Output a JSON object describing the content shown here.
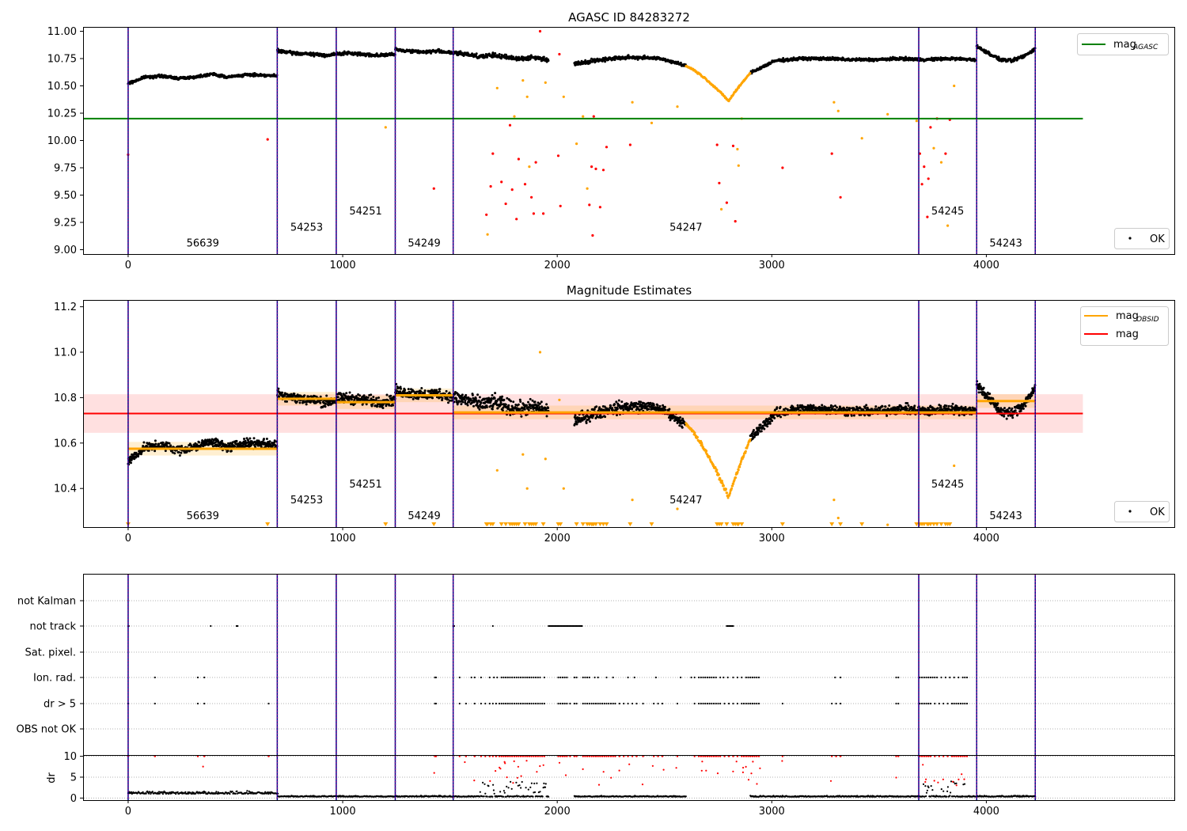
{
  "chart_data": [
    {
      "type": "scatter",
      "title": "AGASC ID 84283272",
      "xlabel": "",
      "ylabel": "",
      "xlim": [
        -210,
        4880
      ],
      "ylim": [
        8.96,
        11.04
      ],
      "xticks": [
        0,
        1000,
        2000,
        3000,
        4000
      ],
      "yticks": [
        9.0,
        9.25,
        9.5,
        9.75,
        10.0,
        10.25,
        10.5,
        10.75,
        11.0
      ],
      "ytick_labels": [
        "9.00",
        "9.25",
        "9.50",
        "9.75",
        "10.00",
        "10.25",
        "10.50",
        "10.75",
        "11.00"
      ],
      "obs_boundaries": [
        0,
        695,
        970,
        1245,
        1515,
        3685,
        3955,
        4228
      ],
      "obs_labels": [
        {
          "text": "56639",
          "x": 348,
          "y": 9.065
        },
        {
          "text": "54253",
          "x": 832,
          "y": 9.21
        },
        {
          "text": "54251",
          "x": 1107,
          "y": 9.36
        },
        {
          "text": "54249",
          "x": 1380,
          "y": 9.065
        },
        {
          "text": "54247",
          "x": 2600,
          "y": 9.21
        },
        {
          "text": "54245",
          "x": 3820,
          "y": 9.36
        },
        {
          "text": "54243",
          "x": 4091,
          "y": 9.065
        }
      ],
      "reference_lines": [
        {
          "name": "mag_AGASC",
          "y": 10.2,
          "x": [
            -210,
            4450
          ],
          "color": "#008000"
        }
      ],
      "legends": [
        {
          "position": "top-right",
          "entries": [
            {
              "label": "mag",
              "sub": "AGASC",
              "color": "#008000",
              "marker": "line"
            }
          ]
        },
        {
          "position": "bottom-right",
          "entries": [
            {
              "label": "OK",
              "color": "#000000",
              "marker": "dot"
            }
          ]
        }
      ],
      "segments": [
        {
          "x0": 0,
          "x1": 695,
          "base": [
            10.52,
            10.58,
            10.59,
            10.57,
            10.58,
            10.61,
            10.58,
            10.6,
            10.6,
            10.59
          ],
          "spread": 0.018
        },
        {
          "x0": 695,
          "x1": 1245,
          "base": [
            10.82,
            10.8,
            10.79,
            10.78,
            10.8,
            10.79,
            10.78,
            10.79
          ],
          "spread": 0.022
        },
        {
          "x0": 1245,
          "x1": 1515,
          "base": [
            10.83,
            10.82,
            10.81,
            10.82,
            10.8
          ],
          "spread": 0.022
        },
        {
          "x0": 1515,
          "x1": 1960,
          "base": [
            10.8,
            10.79,
            10.77,
            10.78,
            10.76,
            10.75,
            10.76,
            10.74
          ],
          "spread": 0.03
        },
        {
          "x0": 2080,
          "x1": 2420,
          "base": [
            10.7,
            10.73,
            10.75,
            10.76,
            10.76
          ],
          "spread": 0.025
        },
        {
          "x0": 2420,
          "x1": 2600,
          "base": [
            10.76,
            10.75,
            10.72,
            10.68
          ],
          "spread": 0.02
        },
        {
          "x0": 2900,
          "x1": 3950,
          "base": [
            10.62,
            10.73,
            10.75,
            10.75,
            10.74,
            10.74,
            10.75,
            10.74,
            10.75,
            10.74
          ],
          "spread": 0.02
        },
        {
          "x0": 3955,
          "x1": 4228,
          "base": [
            10.86,
            10.8,
            10.74,
            10.73,
            10.77,
            10.84
          ],
          "spread": 0.022
        }
      ],
      "dip": {
        "x_start": 2600,
        "x_min": 2800,
        "x_end": 2900,
        "y_top": 10.68,
        "y_min": 10.36,
        "color": "#ffa500"
      },
      "outliers": [
        {
          "x": 0,
          "y": 9.87,
          "color": "#ff0000"
        },
        {
          "x": 650,
          "y": 10.01,
          "color": "#ff0000"
        },
        {
          "x": 1200,
          "y": 10.12,
          "color": "#ffa500"
        },
        {
          "x": 1425,
          "y": 9.56,
          "color": "#ff0000"
        },
        {
          "x": 1670,
          "y": 9.32,
          "color": "#ff0000"
        },
        {
          "x": 1675,
          "y": 9.14,
          "color": "#ffa500"
        },
        {
          "x": 1690,
          "y": 9.58,
          "color": "#ff0000"
        },
        {
          "x": 1700,
          "y": 9.88,
          "color": "#ff0000"
        },
        {
          "x": 1720,
          "y": 10.48,
          "color": "#ffa500"
        },
        {
          "x": 1740,
          "y": 9.62,
          "color": "#ff0000"
        },
        {
          "x": 1760,
          "y": 9.42,
          "color": "#ff0000"
        },
        {
          "x": 1780,
          "y": 10.14,
          "color": "#ff0000"
        },
        {
          "x": 1790,
          "y": 9.55,
          "color": "#ff0000"
        },
        {
          "x": 1800,
          "y": 10.22,
          "color": "#ffa500"
        },
        {
          "x": 1810,
          "y": 9.28,
          "color": "#ff0000"
        },
        {
          "x": 1820,
          "y": 9.83,
          "color": "#ff0000"
        },
        {
          "x": 1840,
          "y": 10.55,
          "color": "#ffa500"
        },
        {
          "x": 1850,
          "y": 9.6,
          "color": "#ff0000"
        },
        {
          "x": 1860,
          "y": 10.4,
          "color": "#ffa500"
        },
        {
          "x": 1870,
          "y": 9.76,
          "color": "#ffa500"
        },
        {
          "x": 1880,
          "y": 9.48,
          "color": "#ff0000"
        },
        {
          "x": 1890,
          "y": 9.33,
          "color": "#ff0000"
        },
        {
          "x": 1900,
          "y": 9.8,
          "color": "#ff0000"
        },
        {
          "x": 1920,
          "y": 11.0,
          "color": "#ff0000"
        },
        {
          "x": 1935,
          "y": 9.33,
          "color": "#ff0000"
        },
        {
          "x": 1945,
          "y": 10.53,
          "color": "#ffa500"
        },
        {
          "x": 2005,
          "y": 9.86,
          "color": "#ff0000"
        },
        {
          "x": 2010,
          "y": 10.79,
          "color": "#ff0000"
        },
        {
          "x": 2015,
          "y": 9.4,
          "color": "#ff0000"
        },
        {
          "x": 2030,
          "y": 10.4,
          "color": "#ffa500"
        },
        {
          "x": 2090,
          "y": 9.97,
          "color": "#ffa500"
        },
        {
          "x": 2120,
          "y": 10.22,
          "color": "#ffa500"
        },
        {
          "x": 2140,
          "y": 9.56,
          "color": "#ffa500"
        },
        {
          "x": 2150,
          "y": 9.41,
          "color": "#ff0000"
        },
        {
          "x": 2160,
          "y": 9.76,
          "color": "#ff0000"
        },
        {
          "x": 2165,
          "y": 9.13,
          "color": "#ff0000"
        },
        {
          "x": 2170,
          "y": 10.22,
          "color": "#ff0000"
        },
        {
          "x": 2180,
          "y": 9.74,
          "color": "#ff0000"
        },
        {
          "x": 2200,
          "y": 9.39,
          "color": "#ff0000"
        },
        {
          "x": 2215,
          "y": 9.73,
          "color": "#ff0000"
        },
        {
          "x": 2230,
          "y": 9.94,
          "color": "#ff0000"
        },
        {
          "x": 2340,
          "y": 9.96,
          "color": "#ff0000"
        },
        {
          "x": 2350,
          "y": 10.35,
          "color": "#ffa500"
        },
        {
          "x": 2440,
          "y": 10.16,
          "color": "#ffa500"
        },
        {
          "x": 2560,
          "y": 10.31,
          "color": "#ffa500"
        },
        {
          "x": 2745,
          "y": 9.96,
          "color": "#ff0000"
        },
        {
          "x": 2755,
          "y": 9.61,
          "color": "#ff0000"
        },
        {
          "x": 2765,
          "y": 9.37,
          "color": "#ffa500"
        },
        {
          "x": 2790,
          "y": 9.43,
          "color": "#ff0000"
        },
        {
          "x": 2820,
          "y": 9.95,
          "color": "#ff0000"
        },
        {
          "x": 2830,
          "y": 9.26,
          "color": "#ff0000"
        },
        {
          "x": 2840,
          "y": 9.92,
          "color": "#ffa500"
        },
        {
          "x": 2845,
          "y": 9.77,
          "color": "#ffa500"
        },
        {
          "x": 2860,
          "y": 10.2,
          "color": "#ffa500"
        },
        {
          "x": 3050,
          "y": 9.75,
          "color": "#ff0000"
        },
        {
          "x": 3280,
          "y": 9.88,
          "color": "#ff0000"
        },
        {
          "x": 3290,
          "y": 10.35,
          "color": "#ffa500"
        },
        {
          "x": 3310,
          "y": 10.27,
          "color": "#ffa500"
        },
        {
          "x": 3320,
          "y": 9.48,
          "color": "#ff0000"
        },
        {
          "x": 3420,
          "y": 10.02,
          "color": "#ffa500"
        },
        {
          "x": 3540,
          "y": 10.24,
          "color": "#ffa500"
        },
        {
          "x": 3675,
          "y": 10.18,
          "color": "#ffa500"
        },
        {
          "x": 3690,
          "y": 9.88,
          "color": "#ff0000"
        },
        {
          "x": 3700,
          "y": 9.6,
          "color": "#ff0000"
        },
        {
          "x": 3710,
          "y": 9.76,
          "color": "#ff0000"
        },
        {
          "x": 3725,
          "y": 9.3,
          "color": "#ff0000"
        },
        {
          "x": 3730,
          "y": 9.65,
          "color": "#ff0000"
        },
        {
          "x": 3740,
          "y": 10.12,
          "color": "#ff0000"
        },
        {
          "x": 3755,
          "y": 9.93,
          "color": "#ffa500"
        },
        {
          "x": 3770,
          "y": 10.2,
          "color": "#ff0000"
        },
        {
          "x": 3790,
          "y": 9.8,
          "color": "#ffa500"
        },
        {
          "x": 3810,
          "y": 9.88,
          "color": "#ff0000"
        },
        {
          "x": 3820,
          "y": 9.22,
          "color": "#ffa500"
        },
        {
          "x": 3830,
          "y": 10.19,
          "color": "#ff0000"
        },
        {
          "x": 3850,
          "y": 10.5,
          "color": "#ffa500"
        }
      ]
    },
    {
      "type": "scatter",
      "title": "Magnitude Estimates",
      "xlabel": "",
      "ylabel": "",
      "xlim": [
        -210,
        4880
      ],
      "ylim": [
        10.23,
        11.23
      ],
      "xticks": [
        0,
        1000,
        2000,
        3000,
        4000
      ],
      "yticks": [
        10.4,
        10.6,
        10.8,
        11.0,
        11.2
      ],
      "ytick_labels": [
        "10.4",
        "10.6",
        "10.8",
        "11.0",
        "11.2"
      ],
      "mag": {
        "y": 10.73,
        "band": [
          10.645,
          10.815
        ],
        "x": [
          -210,
          4450
        ],
        "color": "#ff0000"
      },
      "mag_obsid": [
        {
          "x0": 0,
          "x1": 695,
          "y": 10.575
        },
        {
          "x0": 695,
          "x1": 970,
          "y": 10.795
        },
        {
          "x0": 970,
          "x1": 1245,
          "y": 10.78
        },
        {
          "x0": 1245,
          "x1": 1515,
          "y": 10.81
        },
        {
          "x0": 1515,
          "x1": 3685,
          "y": 10.735
        },
        {
          "x0": 3685,
          "x1": 3955,
          "y": 10.735
        },
        {
          "x0": 3955,
          "x1": 4228,
          "y": 10.785
        }
      ],
      "legends": [
        {
          "position": "top-right",
          "entries": [
            {
              "label": "mag",
              "sub": "OBSID",
              "color": "#ffa500",
              "marker": "line"
            },
            {
              "label": "mag",
              "sub": "",
              "color": "#ff0000",
              "marker": "line"
            }
          ]
        },
        {
          "position": "bottom-right",
          "entries": [
            {
              "label": "OK",
              "color": "#000000",
              "marker": "dot"
            }
          ]
        }
      ]
    },
    {
      "type": "scatter",
      "title": "",
      "xlabel": "",
      "ylabel": "",
      "flag_rows": [
        "not Kalman",
        "not track",
        "Sat. pixel.",
        "Ion. rad.",
        "dr > 5",
        "OBS not OK"
      ],
      "flag_points": {
        "not Kalman": [
          3955
        ],
        "not track": [
          0,
          3,
          385,
          505,
          510,
          1515,
          1520,
          1700,
          1960,
          1965,
          1970,
          1975,
          1980,
          1985,
          1990,
          1995,
          2000,
          2005,
          2010,
          2015,
          2020,
          2025,
          2030,
          2035,
          2040,
          2045,
          2050,
          2055,
          2060,
          2065,
          2070,
          2075,
          2080,
          2085,
          2090,
          2095,
          2100,
          2105,
          2110,
          2115,
          2790,
          2795,
          2800,
          2805,
          2810,
          2815,
          2820
        ],
        "Sat. pixel.": [],
        "Ion. rad.": [
          125,
          325,
          355,
          1430,
          1435,
          1545,
          1600,
          1615,
          1645,
          1685,
          1705,
          1720,
          1740,
          1750,
          1760,
          1770,
          1780,
          1790,
          1800,
          1810,
          1820,
          1830,
          1840,
          1850,
          1860,
          1870,
          1880,
          1890,
          1900,
          1910,
          1920,
          1940,
          2005,
          2015,
          2025,
          2035,
          2045,
          2080,
          2090,
          2120,
          2130,
          2140,
          2150,
          2175,
          2190,
          2230,
          2260,
          2330,
          2360,
          2460,
          2575,
          2625,
          2640,
          2660,
          2670,
          2680,
          2690,
          2700,
          2710,
          2720,
          2730,
          2740,
          2760,
          2775,
          2795,
          2820,
          2840,
          2860,
          2880,
          2890,
          2900,
          2910,
          2920,
          2930,
          2940,
          3295,
          3320,
          3580,
          3590,
          3690,
          3700,
          3710,
          3720,
          3730,
          3740,
          3750,
          3760,
          3770,
          3790,
          3810,
          3830,
          3850,
          3870,
          3890,
          3900,
          3910
        ],
        "dr > 5": [
          0,
          125,
          325,
          355,
          655,
          1430,
          1435,
          1545,
          1575,
          1615,
          1645,
          1665,
          1685,
          1700,
          1715,
          1730,
          1740,
          1750,
          1760,
          1770,
          1780,
          1790,
          1800,
          1810,
          1820,
          1830,
          1840,
          1850,
          1860,
          1870,
          1880,
          1890,
          1900,
          1910,
          1920,
          1930,
          1940,
          2005,
          2015,
          2025,
          2035,
          2045,
          2060,
          2080,
          2090,
          2120,
          2130,
          2140,
          2150,
          2160,
          2170,
          2180,
          2190,
          2200,
          2210,
          2220,
          2230,
          2240,
          2250,
          2260,
          2270,
          2290,
          2310,
          2330,
          2350,
          2370,
          2400,
          2450,
          2470,
          2490,
          2560,
          2640,
          2660,
          2670,
          2680,
          2690,
          2700,
          2710,
          2720,
          2730,
          2740,
          2750,
          2760,
          2780,
          2800,
          2820,
          2840,
          2860,
          2870,
          2880,
          2890,
          2900,
          2910,
          2920,
          2930,
          2940,
          3050,
          3280,
          3300,
          3320,
          3580,
          3590,
          3690,
          3700,
          3710,
          3720,
          3730,
          3740,
          3760,
          3780,
          3800,
          3820,
          3840,
          3850,
          3860,
          3870,
          3880,
          3890,
          3900,
          3910
        ],
        "OBS not OK": []
      },
      "dr_axis": {
        "yticks": [
          0,
          5,
          10
        ],
        "ytick_labels": [
          "0",
          "5",
          "10"
        ],
        "ylim": [
          -0.5,
          10.3
        ],
        "ylabel": "dr"
      },
      "xlim": [
        -210,
        4880
      ],
      "xticks": [
        0,
        1000,
        2000,
        3000,
        4000
      ]
    }
  ],
  "colors": {
    "ok": "#000000",
    "suspect": "#ffa500",
    "bad": "#ff0000",
    "boundary": "#800080",
    "boundary_alt": "#00008b"
  }
}
